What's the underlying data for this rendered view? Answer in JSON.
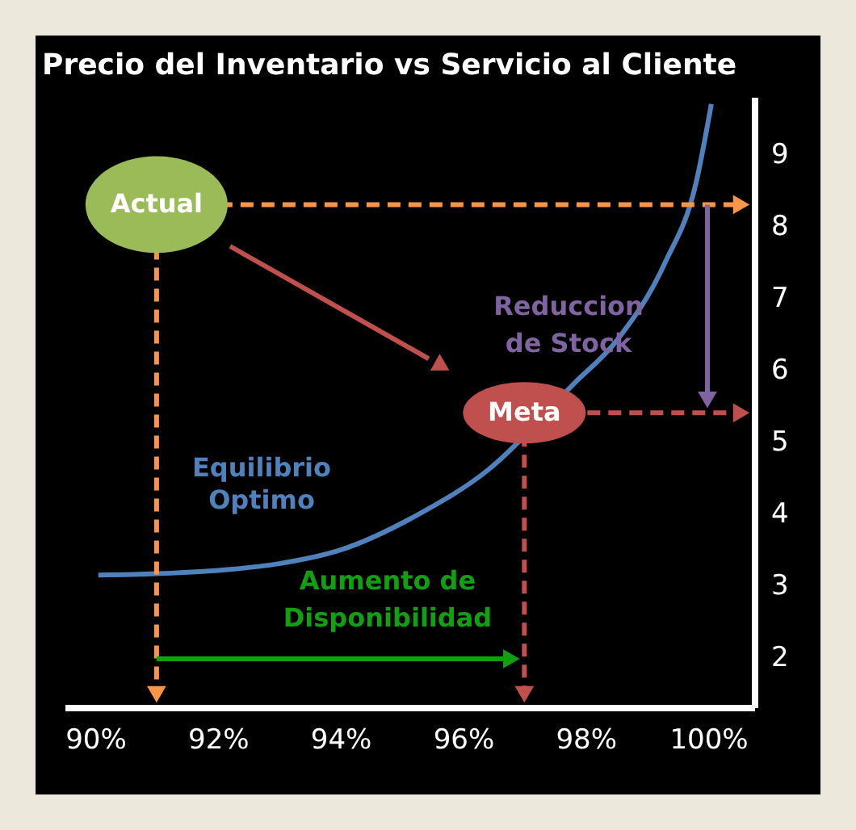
{
  "chart_data": {
    "type": "line",
    "title": "Precio del Inventario vs Servicio al Cliente",
    "xlim": [
      89.5,
      100.75
    ],
    "xticks": [
      {
        "value": 90,
        "label": "90%"
      },
      {
        "value": 92,
        "label": "92%"
      },
      {
        "value": 94,
        "label": "94%"
      },
      {
        "value": 96,
        "label": "96%"
      },
      {
        "value": 98,
        "label": "98%"
      },
      {
        "value": 100,
        "label": "100%"
      }
    ],
    "ylim": [
      1.3,
      9.8
    ],
    "yticks": [
      2,
      3,
      4,
      5,
      6,
      7,
      8,
      9
    ],
    "grid": false,
    "ref_lines": [
      {
        "axis": "y",
        "value": 8.3,
        "color": "#f79646",
        "line_style": "dashed"
      },
      {
        "axis": "x",
        "value": 91,
        "color": "#f79646",
        "line_style": "dashed"
      },
      {
        "axis": "y",
        "value": 5.4,
        "color": "#c0504d",
        "line_style": "dashed"
      },
      {
        "axis": "x",
        "value": 97,
        "color": "#c0504d",
        "line_style": "dashed"
      }
    ],
    "series": [
      {
        "name": "Equilibrio Optimo",
        "color": "#4f81bd",
        "x": [
          90.05,
          91,
          92.2,
          93,
          94,
          95.3,
          96.4,
          97.8,
          98.5,
          99.3,
          99.8,
          100.05
        ],
        "values": [
          3.14,
          3.16,
          3.22,
          3.3,
          3.49,
          4.0,
          4.6,
          5.8,
          6.4,
          7.5,
          8.6,
          9.7
        ]
      }
    ],
    "annotations": [
      {
        "text": "Actual",
        "x": 91,
        "y": 8.3
      },
      {
        "text": "Meta",
        "x": 97,
        "y": 5.4
      },
      "Reduccion de Stock",
      "Aumento de Disponibilidad"
    ]
  }
}
